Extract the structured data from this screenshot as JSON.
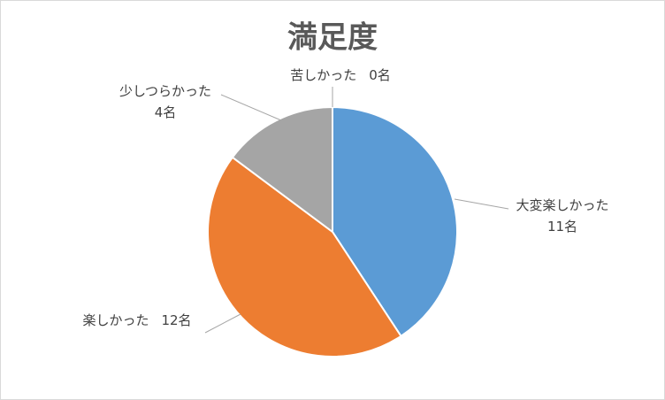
{
  "chart_data": {
    "type": "pie",
    "title": "満足度",
    "categories": [
      "大変楽しかった",
      "楽しかった",
      "少しつらかった",
      "苦しかった"
    ],
    "values": [
      11,
      12,
      4,
      0
    ],
    "value_labels": [
      "11名",
      "12名",
      "4名",
      "0名"
    ],
    "colors": [
      "#5b9bd5",
      "#ed7d31",
      "#a5a5a5",
      "#ffc000"
    ]
  }
}
